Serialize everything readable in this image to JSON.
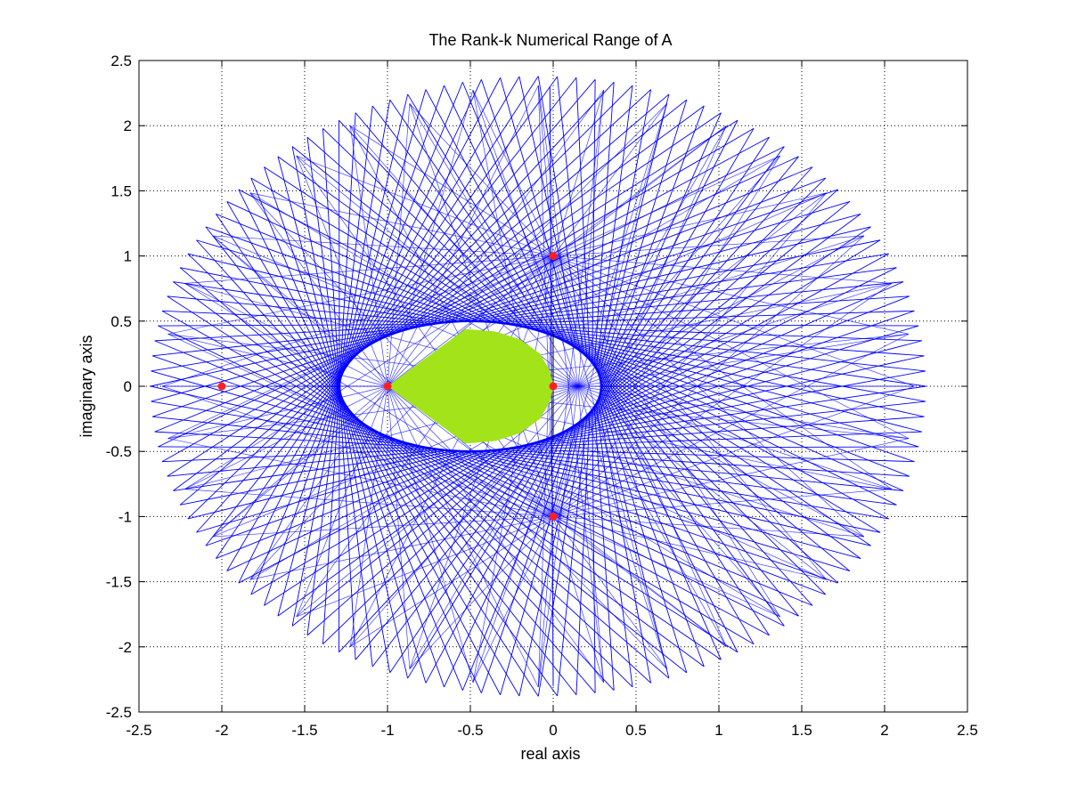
{
  "chart_data": {
    "type": "line",
    "title": "The Rank-k Numerical Range of A",
    "xlabel": "real axis",
    "ylabel": "imaginary axis",
    "xlim": [
      -2.5,
      2.5
    ],
    "ylim": [
      -2.5,
      2.5
    ],
    "xticks": [
      -2.5,
      -2,
      -1.5,
      -1,
      -0.5,
      0,
      0.5,
      1,
      1.5,
      2,
      2.5
    ],
    "yticks": [
      -2.5,
      -2,
      -1.5,
      -1,
      -0.5,
      0,
      0.5,
      1,
      1.5,
      2,
      2.5
    ],
    "xtick_labels": [
      "-2.5",
      "-2",
      "-1.5",
      "-1",
      "-0.5",
      "0",
      "0.5",
      "1",
      "1.5",
      "2",
      "2.5"
    ],
    "ytick_labels": [
      "-2.5",
      "-2",
      "-1.5",
      "-1",
      "-0.5",
      "0",
      "0.5",
      "1",
      "1.5",
      "2",
      "2.5"
    ],
    "grid": true,
    "grid_style": "dotted",
    "eigenvalues": [
      {
        "x": -2,
        "y": 0
      },
      {
        "x": -1,
        "y": 0
      },
      {
        "x": 0,
        "y": 0
      },
      {
        "x": 0,
        "y": 1
      },
      {
        "x": 0,
        "y": -1
      }
    ],
    "eigenvalue_color": "#ff2020",
    "line_color": "#0000ff",
    "region_color": "#a2e31a",
    "region_boundary": [
      {
        "x": -1.0,
        "y": 0.0
      },
      {
        "x": -0.53,
        "y": 0.44
      },
      {
        "x": -0.35,
        "y": 0.42
      },
      {
        "x": -0.2,
        "y": 0.36
      },
      {
        "x": -0.08,
        "y": 0.25
      },
      {
        "x": -0.02,
        "y": 0.12
      },
      {
        "x": 0.0,
        "y": 0.0
      },
      {
        "x": -0.02,
        "y": -0.12
      },
      {
        "x": -0.08,
        "y": -0.25
      },
      {
        "x": -0.2,
        "y": -0.36
      },
      {
        "x": -0.35,
        "y": -0.42
      },
      {
        "x": -0.53,
        "y": -0.44
      },
      {
        "x": -1.0,
        "y": 0.0
      }
    ],
    "inner_ellipse": {
      "cx": -0.5,
      "cy": 0,
      "rx": 0.79,
      "ry": 0.5
    },
    "outer_boundary": {
      "cx": -0.09,
      "cy": 0,
      "rx": 2.34,
      "ry": 2.38
    },
    "line_count": 128
  }
}
